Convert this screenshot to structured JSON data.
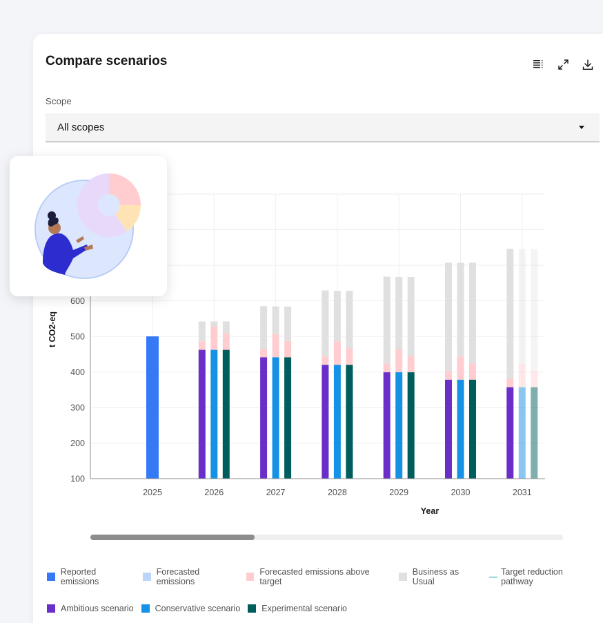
{
  "card": {
    "title": "Compare scenarios",
    "scope_label": "Scope",
    "scope_value": "All scopes"
  },
  "toolbar": {
    "icons": [
      "table-icon",
      "maximize-icon",
      "download-icon"
    ]
  },
  "chart_data": {
    "type": "bar",
    "ylabel": "t CO2-eq",
    "xlabel": "Year",
    "ylim": [
      100,
      900
    ],
    "yticks": [
      100,
      200,
      300,
      400,
      500,
      600
    ],
    "categories": [
      "2025",
      "2026",
      "2027",
      "2028",
      "2029",
      "2030",
      "2031"
    ],
    "stacking": "stacked",
    "series": [
      {
        "name": "Reported emissions",
        "color": "#3579f6",
        "values": [
          500,
          null,
          null,
          null,
          null,
          null,
          null
        ]
      },
      {
        "name": "Ambitious scenario",
        "color": "#6a2fc8",
        "base": [
          462,
          441,
          420,
          399,
          378,
          357
        ],
        "above_target": [
          24,
          24,
          24,
          24,
          24,
          24
        ],
        "bau": [
          56,
          120,
          185,
          245,
          305,
          365
        ]
      },
      {
        "name": "Conservative scenario",
        "color": "#1592e6",
        "base": [
          462,
          441,
          420,
          399,
          378,
          357
        ],
        "above_target": [
          66,
          66,
          66,
          66,
          66,
          66
        ],
        "bau": [
          14,
          77,
          142,
          202,
          263,
          322
        ]
      },
      {
        "name": "Experimental scenario",
        "color": "#005d5d",
        "base": [
          462,
          441,
          420,
          399,
          378,
          357
        ],
        "above_target": [
          46,
          46,
          46,
          46,
          46,
          46
        ],
        "bau": [
          34,
          97,
          162,
          222,
          283,
          342
        ]
      }
    ],
    "gridlines": true
  },
  "legend": {
    "row1": [
      {
        "label": "Reported emissions",
        "color": "#3579f6",
        "kind": "square"
      },
      {
        "label": "Forecasted emissions",
        "color": "#bcd5fb",
        "kind": "square"
      },
      {
        "label": "Forecasted emissions above target",
        "color": "#ffcdd0",
        "kind": "square"
      },
      {
        "label": "Business as Usual",
        "color": "#e0e0e0",
        "kind": "square"
      },
      {
        "label": "Target reduction pathway",
        "color": "#009d9a",
        "kind": "line"
      }
    ],
    "row2": [
      {
        "label": "Ambitious scenario",
        "color": "#6a2fc8",
        "kind": "square"
      },
      {
        "label": "Conservative scenario",
        "color": "#1592e6",
        "kind": "square"
      },
      {
        "label": "Experimental scenario",
        "color": "#005d5d",
        "kind": "square"
      }
    ]
  },
  "colors": {
    "above_target": "#ffcdd0",
    "bau": "#e0e0e0"
  }
}
